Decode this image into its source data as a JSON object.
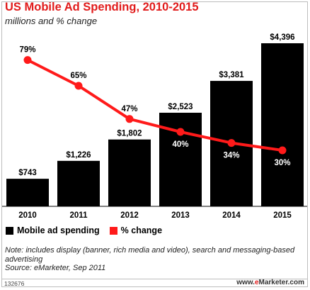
{
  "title": "US Mobile Ad Spending, 2010-2015",
  "subtitle": "millions and % change",
  "chart_data": {
    "type": "bar",
    "categories": [
      "2010",
      "2011",
      "2012",
      "2013",
      "2014",
      "2015"
    ],
    "series": [
      {
        "name": "Mobile ad spending",
        "type": "bar",
        "values": [
          743,
          1226,
          1802,
          2523,
          3381,
          4396
        ],
        "labels": [
          "$743",
          "$1,226",
          "$1,802",
          "$2,523",
          "$3,381",
          "$4,396"
        ],
        "color": "#000000"
      },
      {
        "name": "% change",
        "type": "line",
        "values": [
          79,
          65,
          47,
          40,
          34,
          30
        ],
        "labels": [
          "79%",
          "65%",
          "47%",
          "40%",
          "34%",
          "30%"
        ],
        "color": "#ff1a1a"
      }
    ],
    "grid": false
  },
  "legend": {
    "bar_label": "Mobile ad spending",
    "line_label": "% change"
  },
  "note": "Note: includes display (banner, rich media and video), search and messaging-based advertising",
  "source": "Source: eMarketer, Sep 2011",
  "footer_id": "132676",
  "brand": {
    "prefix": "www.",
    "highlight": "e",
    "rest": "Marketer.com",
    "highlight_color": "#e11b1b"
  }
}
